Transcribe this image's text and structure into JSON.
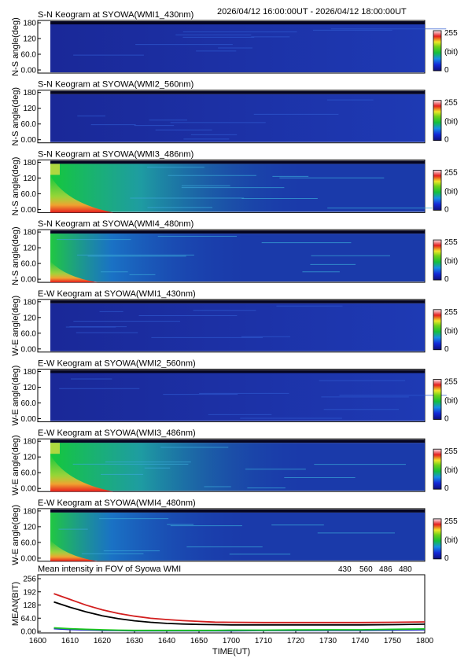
{
  "header": {
    "time_range": "2026/04/12 16:00:00UT - 2026/04/12 18:00:00UT"
  },
  "colors": {
    "bg_dark": "#1a2a8c",
    "accent_430": "#1d2fbf",
    "accent_560": "#1ec81e",
    "accent_486": "#d21e1e",
    "accent_480": "#000000"
  },
  "keograms": [
    {
      "title": "S-N Keogram at SYOWA(WMI1_430nm)",
      "ylabel": "N-S angle(deg)",
      "yticks": [
        "180",
        "120",
        "60.0",
        "0.00"
      ],
      "cb_max": "255",
      "cb_unit": "(bit)",
      "cb_min": "0",
      "intensity": "low"
    },
    {
      "title": "S-N Keogram at SYOWA(WMI2_560nm)",
      "ylabel": "N-S angle(deg)",
      "yticks": [
        "180",
        "120",
        "60.0",
        "0.00"
      ],
      "cb_max": "255",
      "cb_unit": "(bit)",
      "cb_min": "0",
      "intensity": "low"
    },
    {
      "title": "S-N Keogram at SYOWA(WMI3_486nm)",
      "ylabel": "N-S angle(deg)",
      "yticks": [
        "180",
        "120",
        "60.0",
        "0.00"
      ],
      "cb_max": "255",
      "cb_unit": "(bit)",
      "cb_min": "0",
      "intensity": "high"
    },
    {
      "title": "S-N Keogram at SYOWA(WMI4_480nm)",
      "ylabel": "N-S angle(deg)",
      "yticks": [
        "180",
        "120",
        "60.0",
        "0.00"
      ],
      "cb_max": "255",
      "cb_unit": "(bit)",
      "cb_min": "0",
      "intensity": "medium"
    },
    {
      "title": "E-W Keogram at SYOWA(WMI1_430nm)",
      "ylabel": "W-E angle(deg)",
      "yticks": [
        "180",
        "120",
        "60.0",
        "0.00"
      ],
      "cb_max": "255",
      "cb_unit": "(bit)",
      "cb_min": "0",
      "intensity": "low"
    },
    {
      "title": "E-W Keogram at SYOWA(WMI2_560nm)",
      "ylabel": "W-E angle(deg)",
      "yticks": [
        "180",
        "120",
        "60.0",
        "0.00"
      ],
      "cb_max": "255",
      "cb_unit": "(bit)",
      "cb_min": "0",
      "intensity": "low"
    },
    {
      "title": "E-W Keogram at SYOWA(WMI3_486nm)",
      "ylabel": "W-E angle(deg)",
      "yticks": [
        "180",
        "120",
        "60.0",
        "0.00"
      ],
      "cb_max": "255",
      "cb_unit": "(bit)",
      "cb_min": "0",
      "intensity": "high"
    },
    {
      "title": "E-W Keogram at SYOWA(WMI4_480nm)",
      "ylabel": "W-E angle(deg)",
      "yticks": [
        "180",
        "120",
        "60.0",
        "0.00"
      ],
      "cb_max": "255",
      "cb_unit": "(bit)",
      "cb_min": "0",
      "intensity": "medium"
    }
  ],
  "chart_data": {
    "type": "line",
    "title": "Mean intensity in FOV of Syowa WMI",
    "xlabel": "TIME(UT)",
    "ylabel": "MEAN(BIT)",
    "x_ticks": [
      "1600",
      "1610",
      "1620",
      "1630",
      "1640",
      "1650",
      "1700",
      "1710",
      "1720",
      "1730",
      "1740",
      "1750",
      "1800"
    ],
    "y_ticks": [
      "256",
      "192",
      "128",
      "64.0",
      "0.00"
    ],
    "ylim": [
      0,
      256
    ],
    "xlim": [
      0,
      120
    ],
    "legend_position": "top-right",
    "x": [
      5,
      10,
      15,
      20,
      25,
      30,
      35,
      40,
      45,
      50,
      55,
      60,
      70,
      80,
      90,
      100,
      110,
      120
    ],
    "series": [
      {
        "name": "430",
        "color": "#1d2fbf",
        "values": [
          20,
          16,
          14,
          12,
          11,
          10,
          10,
          10,
          10,
          10,
          10,
          10,
          11,
          11,
          12,
          12,
          13,
          15
        ]
      },
      {
        "name": "560",
        "color": "#1ec81e",
        "values": [
          24,
          20,
          17,
          15,
          13,
          12,
          12,
          12,
          12,
          12,
          12,
          13,
          13,
          14,
          15,
          15,
          17,
          19
        ]
      },
      {
        "name": "486",
        "color": "#d21e1e",
        "values": [
          185,
          158,
          131,
          109,
          92,
          79,
          69,
          63,
          58,
          54,
          51,
          50,
          49,
          49,
          49,
          49,
          50,
          52
        ]
      },
      {
        "name": "480",
        "color": "#000000",
        "values": [
          146,
          121,
          99,
          81,
          67,
          57,
          50,
          45,
          42,
          40,
          39,
          38,
          38,
          38,
          38,
          38,
          39,
          41
        ]
      }
    ]
  }
}
